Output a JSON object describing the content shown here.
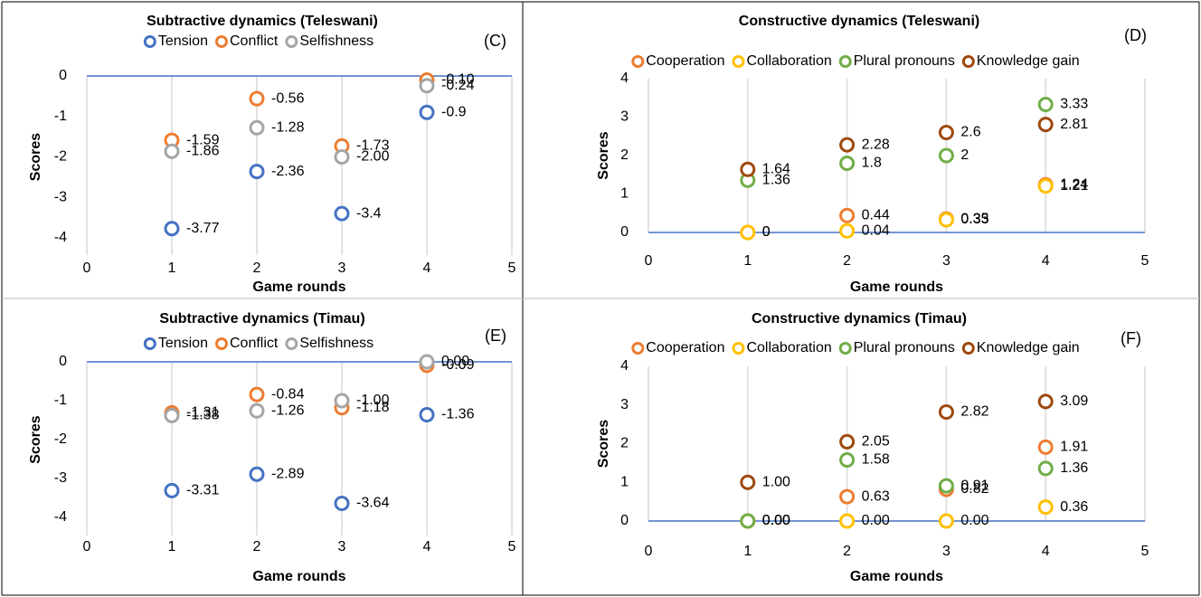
{
  "chart_data": [
    {
      "type": "scatter",
      "title": "Subtractive dynamics (Teleswani)",
      "annotation": "(C)",
      "x_label": "Game rounds",
      "y_label": "Scores",
      "x": [
        1,
        2,
        3,
        4
      ],
      "xlim": [
        0,
        5
      ],
      "xticks": [
        0,
        1,
        2,
        3,
        4,
        5
      ],
      "ylim": [
        -4,
        0
      ],
      "yticks": [
        0,
        -1,
        -2,
        -3,
        -4
      ],
      "grid": true,
      "series": [
        {
          "name": "Tension",
          "color": "#4472c4",
          "values": [
            -3.77,
            -2.36,
            -3.4,
            -0.9
          ]
        },
        {
          "name": "Conflict",
          "color": "#ed7d31",
          "values": [
            -1.59,
            -0.56,
            -1.73,
            -0.1
          ],
          "value_labels": [
            "-1.59",
            "-0.56",
            "-1.73",
            "-0.10"
          ]
        },
        {
          "name": "Selfishness",
          "color": "#a5a5a5",
          "values": [
            -1.86,
            -1.28,
            -2.0,
            -0.24
          ],
          "value_labels": [
            "-1.86",
            "-1.28",
            "-2.00",
            "-0.24"
          ]
        }
      ]
    },
    {
      "type": "scatter",
      "title": "Constructive dynamics (Teleswani)",
      "annotation": "(D)",
      "x_label": "Game rounds",
      "y_label": "Scores",
      "x": [
        1,
        2,
        3,
        4
      ],
      "xlim": [
        0,
        5
      ],
      "xticks": [
        0,
        1,
        2,
        3,
        4,
        5
      ],
      "ylim": [
        0,
        4
      ],
      "yticks": [
        0,
        1,
        2,
        3,
        4
      ],
      "grid": true,
      "series": [
        {
          "name": "Cooperation",
          "color": "#ed7d31",
          "values": [
            0,
            0.44,
            0.35,
            1.24
          ]
        },
        {
          "name": "Collaboration",
          "color": "#ffc000",
          "values": [
            0,
            0.04,
            0.33,
            1.21
          ]
        },
        {
          "name": "Plural pronouns",
          "color": "#70ad47",
          "values": [
            1.36,
            1.8,
            2,
            3.33
          ]
        },
        {
          "name": "Knowledge gain",
          "color": "#9e480e",
          "values": [
            1.64,
            2.28,
            2.6,
            2.81
          ]
        }
      ]
    },
    {
      "type": "scatter",
      "title": "Subtractive dynamics (Timau)",
      "annotation": "(E)",
      "x_label": "Game rounds",
      "y_label": "Scores",
      "x": [
        1,
        2,
        3,
        4
      ],
      "xlim": [
        0,
        5
      ],
      "xticks": [
        0,
        1,
        2,
        3,
        4,
        5
      ],
      "ylim": [
        -4,
        0
      ],
      "yticks": [
        0,
        -1,
        -2,
        -3,
        -4
      ],
      "grid": true,
      "series": [
        {
          "name": "Tension",
          "color": "#4472c4",
          "values": [
            -3.31,
            -2.89,
            -3.64,
            -1.36
          ]
        },
        {
          "name": "Conflict",
          "color": "#ed7d31",
          "values": [
            -1.31,
            -0.84,
            -1.18,
            -0.09
          ]
        },
        {
          "name": "Selfishness",
          "color": "#a5a5a5",
          "values": [
            -1.38,
            -1.26,
            -1.0,
            0.0
          ],
          "value_labels": [
            "-1.38",
            "-1.26",
            "-1.00",
            "0.00"
          ]
        }
      ]
    },
    {
      "type": "scatter",
      "title": "Constructive dynamics (Timau)",
      "annotation": "(F)",
      "x_label": "Game rounds",
      "y_label": "Scores",
      "x": [
        1,
        2,
        3,
        4
      ],
      "xlim": [
        0,
        5
      ],
      "xticks": [
        0,
        1,
        2,
        3,
        4,
        5
      ],
      "ylim": [
        0,
        4
      ],
      "yticks": [
        0,
        1,
        2,
        3,
        4
      ],
      "grid": true,
      "series": [
        {
          "name": "Cooperation",
          "color": "#ed7d31",
          "values": [
            0.0,
            0.63,
            0.82,
            1.91
          ],
          "value_labels": [
            "0.00",
            "0.63",
            "0.82",
            "1.91"
          ]
        },
        {
          "name": "Collaboration",
          "color": "#ffc000",
          "values": [
            0.0,
            0.0,
            0.0,
            0.36
          ],
          "value_labels": [
            "0.00",
            "0.00",
            "0.00",
            "0.36"
          ]
        },
        {
          "name": "Plural pronouns",
          "color": "#70ad47",
          "values": [
            0.0,
            1.58,
            0.91,
            1.36
          ],
          "value_labels": [
            "0.00",
            "1.58",
            "0.91",
            "1.36"
          ]
        },
        {
          "name": "Knowledge gain",
          "color": "#9e480e",
          "values": [
            1.0,
            2.05,
            2.82,
            3.09
          ],
          "value_labels": [
            "1.00",
            "2.05",
            "2.82",
            "3.09"
          ]
        }
      ]
    }
  ]
}
